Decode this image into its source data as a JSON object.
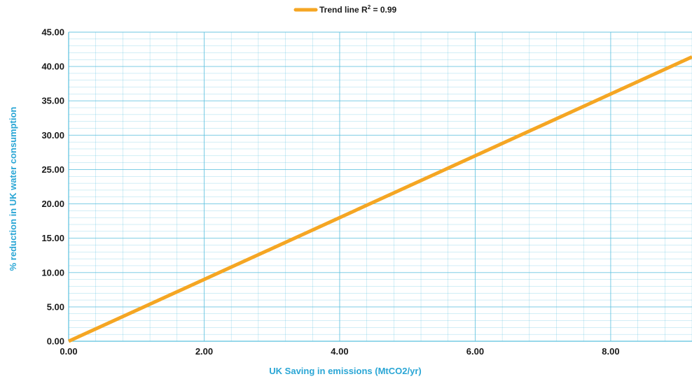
{
  "chart_data": {
    "type": "line",
    "series": [
      {
        "name": "Trend line R",
        "x": [
          0.0,
          9.2
        ],
        "y": [
          0.0,
          41.4
        ]
      }
    ],
    "legend": {
      "label": "Trend line R",
      "superscript": "2",
      "suffix": " = 0.99",
      "position": "top"
    },
    "xlabel": "UK Saving in emissions (MtCO2/yr)",
    "ylabel": "% reduction in UK water consumption",
    "xlim": [
      0.0,
      9.2
    ],
    "ylim": [
      0.0,
      45.0
    ],
    "x_ticks": [
      "0.00",
      "2.00",
      "4.00",
      "6.00",
      "8.00"
    ],
    "y_ticks": [
      "0.00",
      "5.00",
      "10.00",
      "15.00",
      "20.00",
      "25.00",
      "30.00",
      "35.00",
      "40.00",
      "45.00"
    ],
    "grid": true,
    "colors": {
      "line": "#f5a623",
      "grid": "#5bc0de",
      "axis_title": "#2aa6d5",
      "text": "#1a1a1a"
    }
  }
}
